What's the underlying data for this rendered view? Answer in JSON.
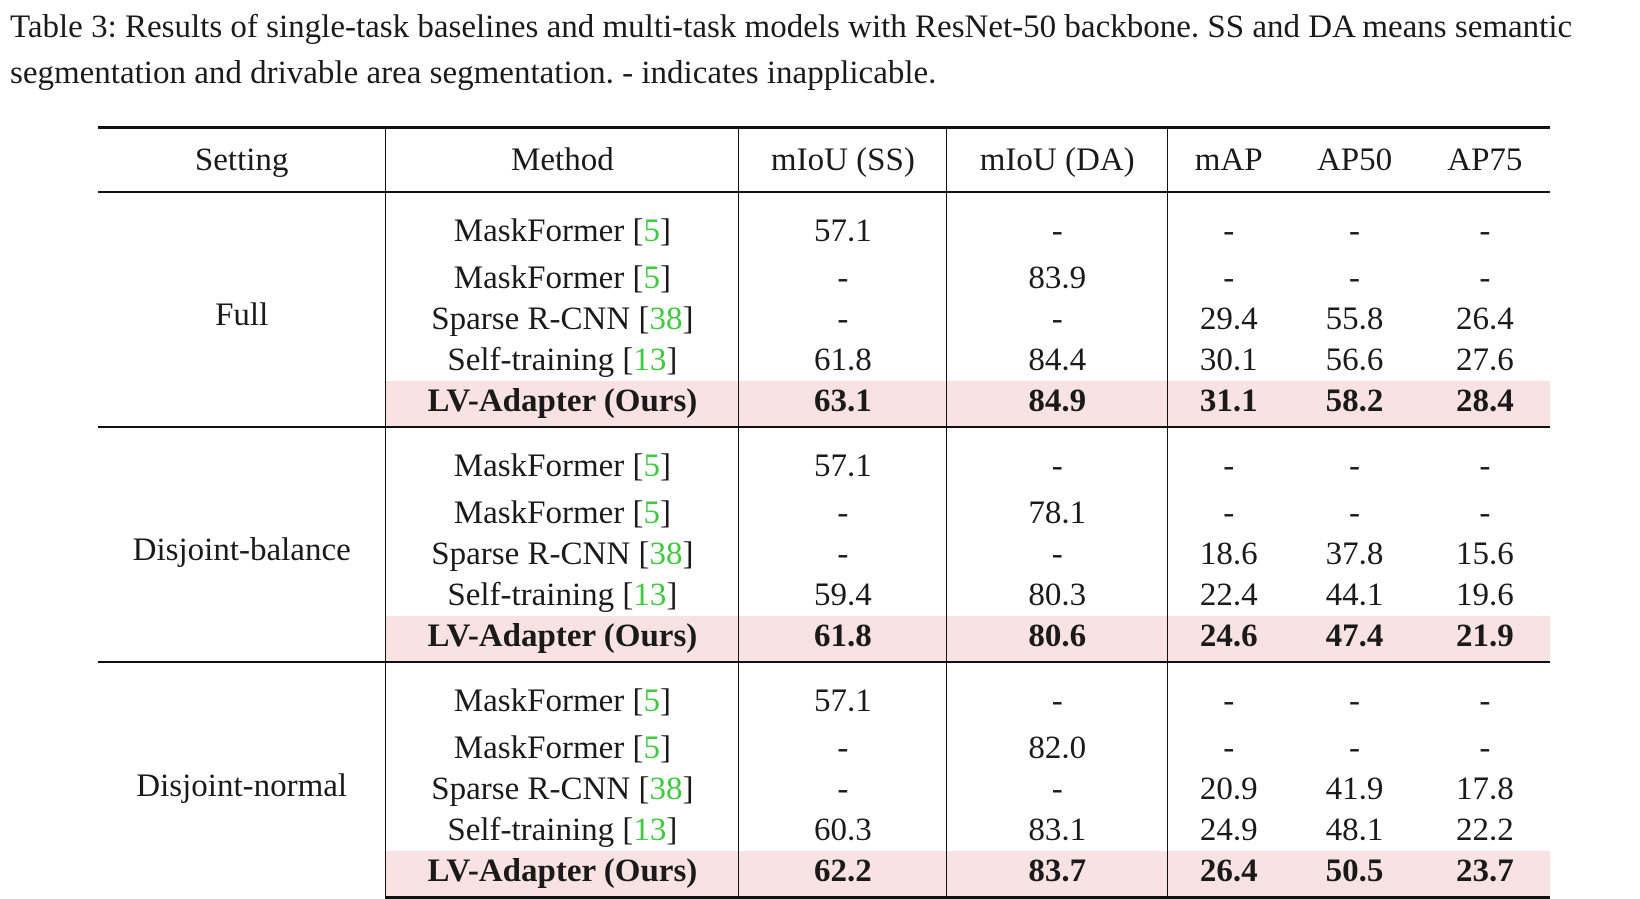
{
  "caption": "Table 3: Results of single-task baselines and multi-task models with ResNet-50 backbone. SS and DA means semantic segmentation and drivable area segmentation. - indicates inapplicable.",
  "headers": [
    "Setting",
    "Method",
    "mIoU (SS)",
    "mIoU (DA)",
    "mAP",
    "AP50",
    "AP75"
  ],
  "highlight_color": "#f8e2e2",
  "citation_color": "#3fc940",
  "groups": [
    {
      "setting": "Full",
      "rows": [
        {
          "method": "MaskFormer",
          "cite": "5",
          "ss": "57.1",
          "da": "-",
          "map": "-",
          "ap50": "-",
          "ap75": "-"
        },
        {
          "method": "MaskFormer",
          "cite": "5",
          "ss": "-",
          "da": "83.9",
          "map": "-",
          "ap50": "-",
          "ap75": "-"
        },
        {
          "method": "Sparse R-CNN",
          "cite": "38",
          "ss": "-",
          "da": "-",
          "map": "29.4",
          "ap50": "55.8",
          "ap75": "26.4"
        },
        {
          "method": "Self-training",
          "cite": "13",
          "ss": "61.8",
          "da": "84.4",
          "map": "30.1",
          "ap50": "56.6",
          "ap75": "27.6"
        },
        {
          "method": "LV-Adapter (Ours)",
          "cite": "",
          "ss": "63.1",
          "da": "84.9",
          "map": "31.1",
          "ap50": "58.2",
          "ap75": "28.4"
        }
      ]
    },
    {
      "setting": "Disjoint-balance",
      "rows": [
        {
          "method": "MaskFormer",
          "cite": "5",
          "ss": "57.1",
          "da": "-",
          "map": "-",
          "ap50": "-",
          "ap75": "-"
        },
        {
          "method": "MaskFormer",
          "cite": "5",
          "ss": "-",
          "da": "78.1",
          "map": "-",
          "ap50": "-",
          "ap75": "-"
        },
        {
          "method": "Sparse R-CNN",
          "cite": "38",
          "ss": "-",
          "da": "-",
          "map": "18.6",
          "ap50": "37.8",
          "ap75": "15.6"
        },
        {
          "method": "Self-training",
          "cite": "13",
          "ss": "59.4",
          "da": "80.3",
          "map": "22.4",
          "ap50": "44.1",
          "ap75": "19.6"
        },
        {
          "method": "LV-Adapter (Ours)",
          "cite": "",
          "ss": "61.8",
          "da": "80.6",
          "map": "24.6",
          "ap50": "47.4",
          "ap75": "21.9"
        }
      ]
    },
    {
      "setting": "Disjoint-normal",
      "rows": [
        {
          "method": "MaskFormer",
          "cite": "5",
          "ss": "57.1",
          "da": "-",
          "map": "-",
          "ap50": "-",
          "ap75": "-"
        },
        {
          "method": "MaskFormer",
          "cite": "5",
          "ss": "-",
          "da": "82.0",
          "map": "-",
          "ap50": "-",
          "ap75": "-"
        },
        {
          "method": "Sparse R-CNN",
          "cite": "38",
          "ss": "-",
          "da": "-",
          "map": "20.9",
          "ap50": "41.9",
          "ap75": "17.8"
        },
        {
          "method": "Self-training",
          "cite": "13",
          "ss": "60.3",
          "da": "83.1",
          "map": "24.9",
          "ap50": "48.1",
          "ap75": "22.2"
        },
        {
          "method": "LV-Adapter (Ours)",
          "cite": "",
          "ss": "62.2",
          "da": "83.7",
          "map": "26.4",
          "ap50": "50.5",
          "ap75": "23.7"
        }
      ]
    }
  ]
}
